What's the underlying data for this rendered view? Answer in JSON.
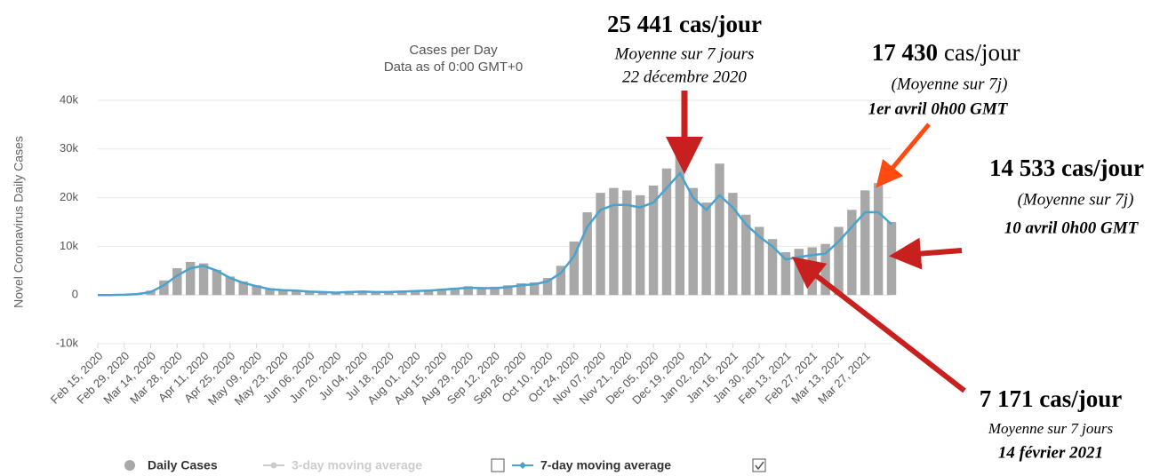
{
  "chart_data": {
    "type": "bar_line",
    "title": "Cases per Day",
    "subtitle": "Data as of 0:00 GMT+0",
    "y_label": "Novel Coronavirus Daily Cases",
    "categories": [
      "Feb 15, 2020",
      null,
      "Feb 29, 2020",
      null,
      "Mar 14, 2020",
      null,
      "Mar 28, 2020",
      null,
      "Apr 11, 2020",
      null,
      "Apr 25, 2020",
      null,
      "May 09, 2020",
      null,
      "May 23, 2020",
      null,
      "Jun 06, 2020",
      null,
      "Jun 20, 2020",
      null,
      "Jul 04, 2020",
      null,
      "Jul 18, 2020",
      null,
      "Aug 01, 2020",
      null,
      "Aug 15, 2020",
      null,
      "Aug 29, 2020",
      null,
      "Sep 12, 2020",
      null,
      "Sep 26, 2020",
      null,
      "Oct 10, 2020",
      null,
      "Oct 24, 2020",
      null,
      "Nov 07, 2020",
      null,
      "Nov 21, 2020",
      null,
      "Dec 05, 2020",
      null,
      "Dec 19, 2020",
      null,
      "Jan 02, 2021",
      null,
      "Jan 16, 2021",
      null,
      "Jan 30, 2021",
      null,
      "Feb 13, 2021",
      null,
      "Feb 27, 2021",
      null,
      "Mar 13, 2021",
      null,
      "Mar 27, 2021",
      null,
      null
    ],
    "series": [
      {
        "name": "Daily Cases",
        "color": "#a8a8a8",
        "values": [
          0,
          10,
          80,
          300,
          900,
          3000,
          5500,
          6800,
          6500,
          5200,
          3800,
          2800,
          2000,
          1400,
          1100,
          1000,
          800,
          700,
          600,
          800,
          900,
          700,
          700,
          900,
          1000,
          1100,
          1300,
          1500,
          1800,
          1600,
          1700,
          2000,
          2400,
          2600,
          3500,
          6000,
          11000,
          17000,
          21000,
          22000,
          21500,
          20500,
          22500,
          26000,
          30000,
          22000,
          19000,
          27000,
          21000,
          16500,
          14000,
          11500,
          8800,
          9500,
          9800,
          10500,
          14000,
          17500,
          21500,
          23000,
          15000
        ]
      },
      {
        "name": "3-day moving average",
        "color": "#c8c8c8",
        "visible": false
      },
      {
        "name": "7-day moving average",
        "color": "#4aa3cf",
        "values": [
          0,
          0,
          50,
          200,
          600,
          2000,
          4000,
          5500,
          6000,
          5000,
          3500,
          2500,
          1800,
          1200,
          1000,
          900,
          700,
          600,
          500,
          600,
          700,
          600,
          600,
          700,
          800,
          900,
          1100,
          1300,
          1500,
          1400,
          1400,
          1600,
          2000,
          2200,
          2800,
          4500,
          8000,
          14000,
          17500,
          18500,
          18500,
          18000,
          19000,
          22000,
          25000,
          20000,
          17500,
          20500,
          18000,
          14500,
          12000,
          10000,
          7300,
          7800,
          8200,
          8500,
          11000,
          14000,
          17000,
          17000,
          14533
        ]
      }
    ],
    "ylim": [
      -10000,
      40000
    ],
    "yticks": [
      {
        "value": -10000,
        "label": "-10k"
      },
      0,
      {
        "value": 10000,
        "label": "10k"
      },
      {
        "value": 20000,
        "label": "20k"
      },
      {
        "value": 30000,
        "label": "30k"
      },
      {
        "value": 40000,
        "label": "40k"
      }
    ],
    "grid": true,
    "annotations": [
      {
        "lines": [
          "25 441 cas/jour",
          "Moyenne sur 7 jours",
          "22 décembre 2020"
        ]
      },
      {
        "value": "17 430",
        "unit": "cas/jour",
        "lines": [
          "(Moyenne sur 7j)",
          "1er avril 0h00 GMT"
        ]
      },
      {
        "lines": [
          "14 533 cas/jour",
          "(Moyenne sur 7j)",
          "10 avril 0h00 GMT"
        ]
      },
      {
        "lines": [
          "7 171 cas/jour",
          "Moyenne sur 7 jours",
          "14 février 2021"
        ]
      }
    ]
  }
}
